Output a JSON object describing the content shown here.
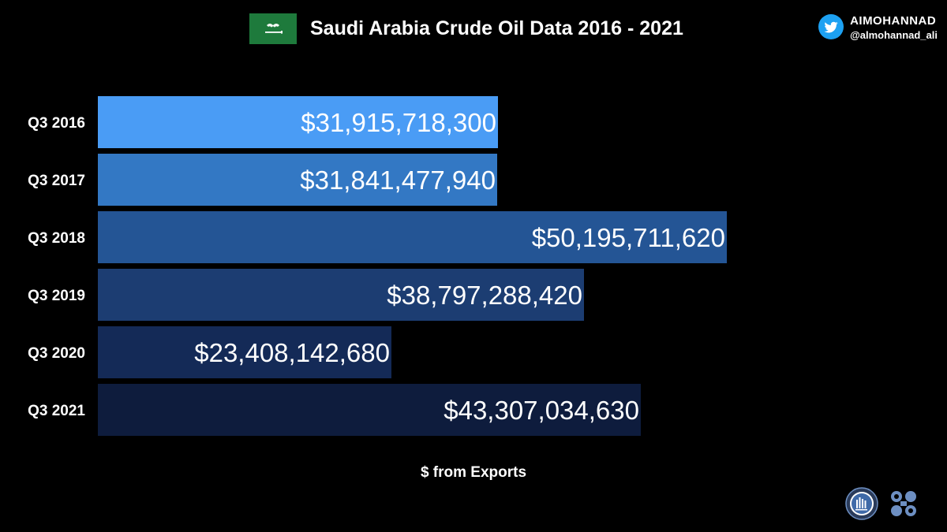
{
  "header": {
    "title": "Saudi Arabia Crude Oil Data 2016 - 2021",
    "flag_icon": "saudi-flag-icon"
  },
  "brand": {
    "name": "AIMOHANNAD",
    "handle": "@almohannad_ali",
    "icon": "twitter-bird-icon",
    "icon_color": "#1da1f2"
  },
  "logos": {
    "left": "seal-logo-icon",
    "right": "opec-logo-icon",
    "color": "#6d8fc2"
  },
  "chart_data": {
    "type": "bar",
    "orientation": "horizontal",
    "title": "Saudi Arabia Crude Oil Data 2016 - 2021",
    "xlabel": "$ from Exports",
    "ylabel": "",
    "categories": [
      "Q3 2016",
      "Q3 2017",
      "Q3 2018",
      "Q3 2019",
      "Q3 2020",
      "Q3 2021"
    ],
    "values": [
      31915718300,
      31841477940,
      50195711620,
      38797288420,
      23408142680,
      43307034630
    ],
    "value_labels": [
      "$31,915,718,300",
      "$31,841,477,940",
      "$50,195,711,620",
      "$38,797,288,420",
      "$23,408,142,680",
      "$43,307,034,630"
    ],
    "bar_colors": [
      "#4a9cf5",
      "#3378c4",
      "#245595",
      "#1c3d72",
      "#142a57",
      "#0e1c3d"
    ],
    "xlim": [
      0,
      50195711620
    ],
    "grid": false,
    "legend": "none"
  }
}
